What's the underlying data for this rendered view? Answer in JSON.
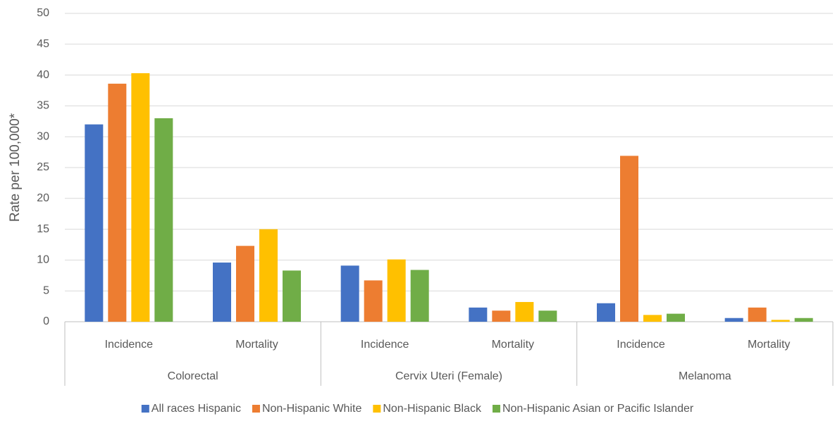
{
  "chart_data": {
    "type": "bar",
    "y_label": "Rate per 100,000*",
    "categories": [
      "Incidence",
      "Mortality",
      "Incidence",
      "Mortality",
      "Incidence",
      "Mortality"
    ],
    "groups": [
      "Colorectal",
      "Cervix Uteri (Female)",
      "Melanoma"
    ],
    "series": [
      {
        "name": "All races Hispanic",
        "color": "#4472c4",
        "values": [
          32.0,
          9.6,
          9.1,
          2.3,
          3.0,
          0.6
        ]
      },
      {
        "name": "Non-Hispanic White",
        "color": "#ed7d31",
        "values": [
          38.6,
          12.3,
          6.7,
          1.8,
          26.9,
          2.3
        ]
      },
      {
        "name": "Non-Hispanic Black",
        "color": "#ffc000",
        "values": [
          40.3,
          15.0,
          10.1,
          3.2,
          1.1,
          0.3
        ]
      },
      {
        "name": "Non-Hispanic Asian or Pacific Islander",
        "color": "#70ad47",
        "values": [
          33.0,
          8.3,
          8.4,
          1.8,
          1.3,
          0.6
        ]
      }
    ],
    "ylim": [
      0,
      50
    ],
    "yticks": [
      0,
      5,
      10,
      15,
      20,
      25,
      30,
      35,
      40,
      45,
      50
    ],
    "grid": true,
    "legend": "bottom"
  }
}
